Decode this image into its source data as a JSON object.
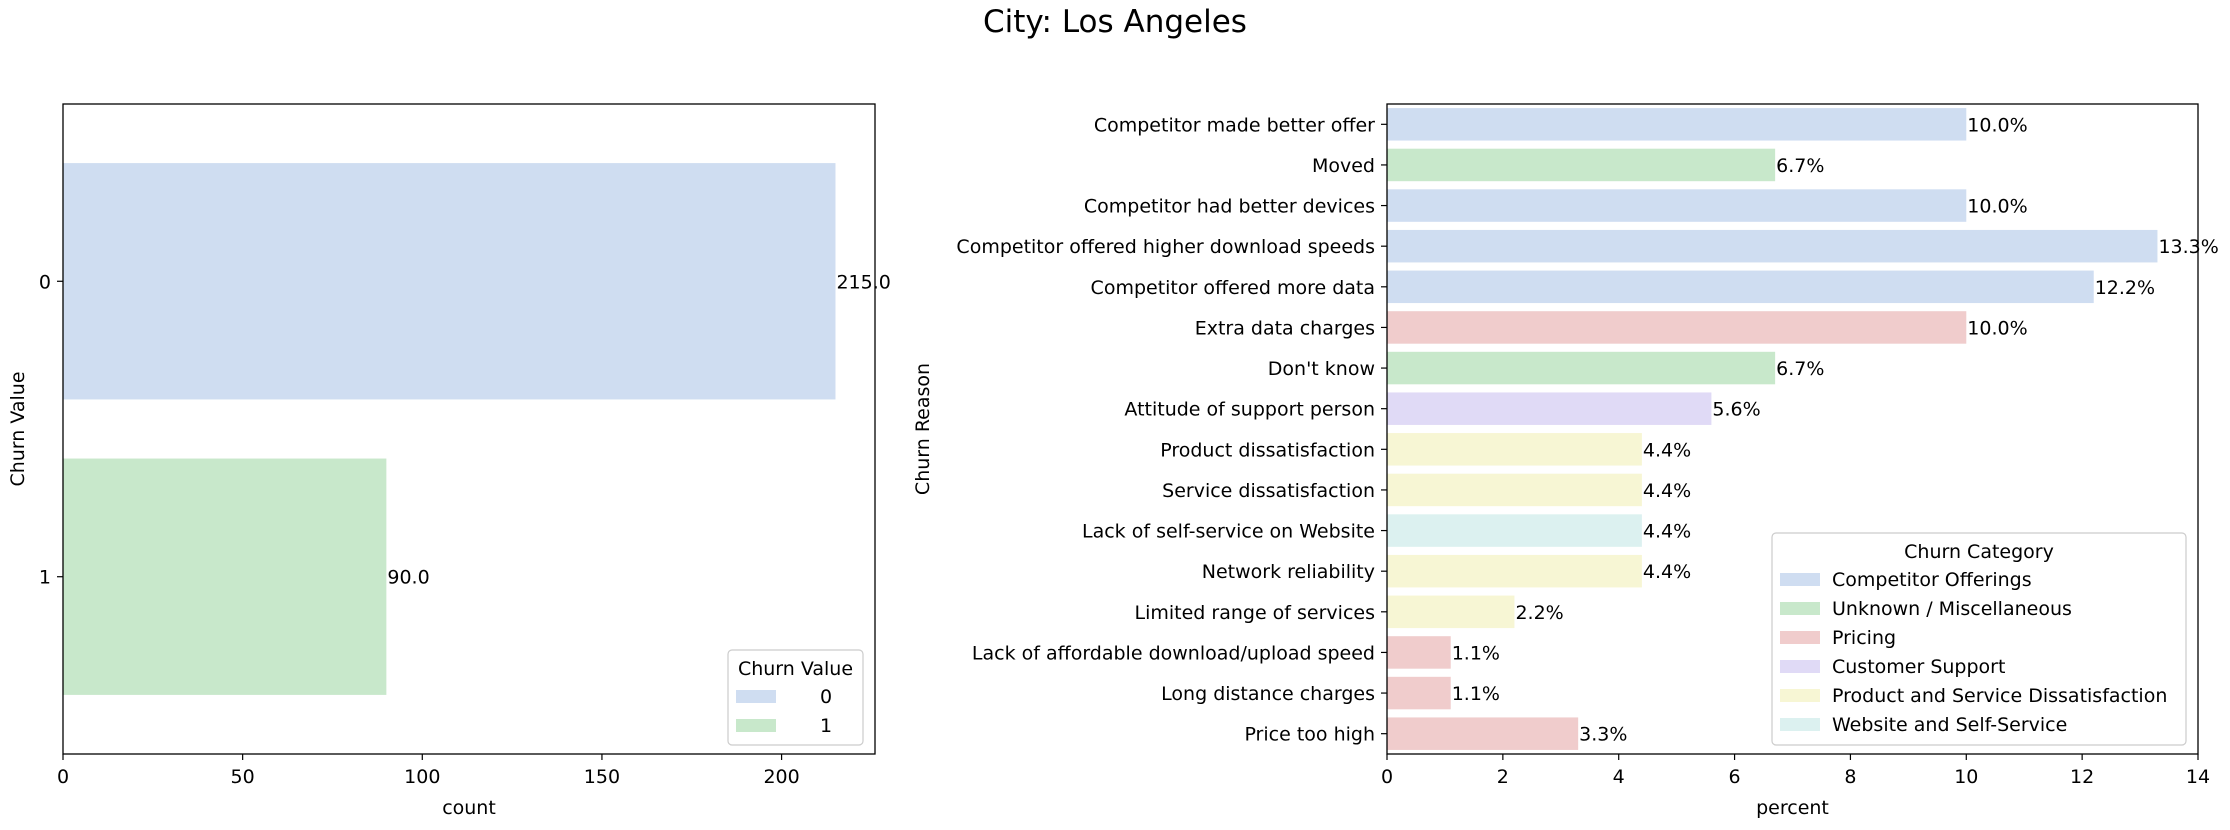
{
  "figure": {
    "title": "City: Los Angeles"
  },
  "chart_data": [
    {
      "type": "bar",
      "orientation": "horizontal",
      "categories": [
        "0",
        "1"
      ],
      "values": [
        215,
        90
      ],
      "value_labels": [
        "215.0",
        "90.0"
      ],
      "colors": [
        "#cfddf1",
        "#c8e8cb"
      ],
      "xlabel": "count",
      "ylabel": "Churn Value",
      "xlim": [
        0,
        226
      ],
      "xticks": [
        0,
        50,
        100,
        150,
        200
      ],
      "grid": false,
      "legend": {
        "title": "Churn Value",
        "placement": "lower-right",
        "items": [
          {
            "label": "0",
            "color": "#cfddf1"
          },
          {
            "label": "1",
            "color": "#c8e8cb"
          }
        ]
      }
    },
    {
      "type": "bar",
      "orientation": "horizontal",
      "categories": [
        "Competitor made better offer",
        "Moved",
        "Competitor had better devices",
        "Competitor offered higher download speeds",
        "Competitor offered more data",
        "Extra data charges",
        "Don't know",
        "Attitude of support person",
        "Product dissatisfaction",
        "Service dissatisfaction",
        "Lack of self-service on Website",
        "Network reliability",
        "Limited range of services",
        "Lack of affordable download/upload speed",
        "Long distance charges",
        "Price too high"
      ],
      "values": [
        10.0,
        6.7,
        10.0,
        13.3,
        12.2,
        10.0,
        6.7,
        5.6,
        4.4,
        4.4,
        4.4,
        4.4,
        2.2,
        1.1,
        1.1,
        3.3
      ],
      "value_labels": [
        "10.0%",
        "6.7%",
        "10.0%",
        "13.3%",
        "12.2%",
        "10.0%",
        "6.7%",
        "5.6%",
        "4.4%",
        "4.4%",
        "4.4%",
        "4.4%",
        "2.2%",
        "1.1%",
        "1.1%",
        "3.3%"
      ],
      "category_group": [
        0,
        1,
        0,
        0,
        0,
        2,
        1,
        3,
        4,
        4,
        5,
        4,
        4,
        2,
        2,
        2
      ],
      "xlabel": "percent",
      "ylabel": "Churn Reason",
      "xlim": [
        0,
        14
      ],
      "xticks": [
        0,
        2,
        4,
        6,
        8,
        10,
        12,
        14
      ],
      "grid": false,
      "legend": {
        "title": "Churn Category",
        "placement": "lower-right",
        "items": [
          {
            "label": "Competitor Offerings",
            "color": "#cfddf1"
          },
          {
            "label": "Unknown / Miscellaneous",
            "color": "#c8e8cb"
          },
          {
            "label": "Pricing",
            "color": "#f0cccc"
          },
          {
            "label": "Customer Support",
            "color": "#e0daf6"
          },
          {
            "label": "Product and Service Dissatisfaction",
            "color": "#f7f6d4"
          },
          {
            "label": "Website and Self-Service",
            "color": "#dcf1f0"
          }
        ]
      }
    }
  ]
}
